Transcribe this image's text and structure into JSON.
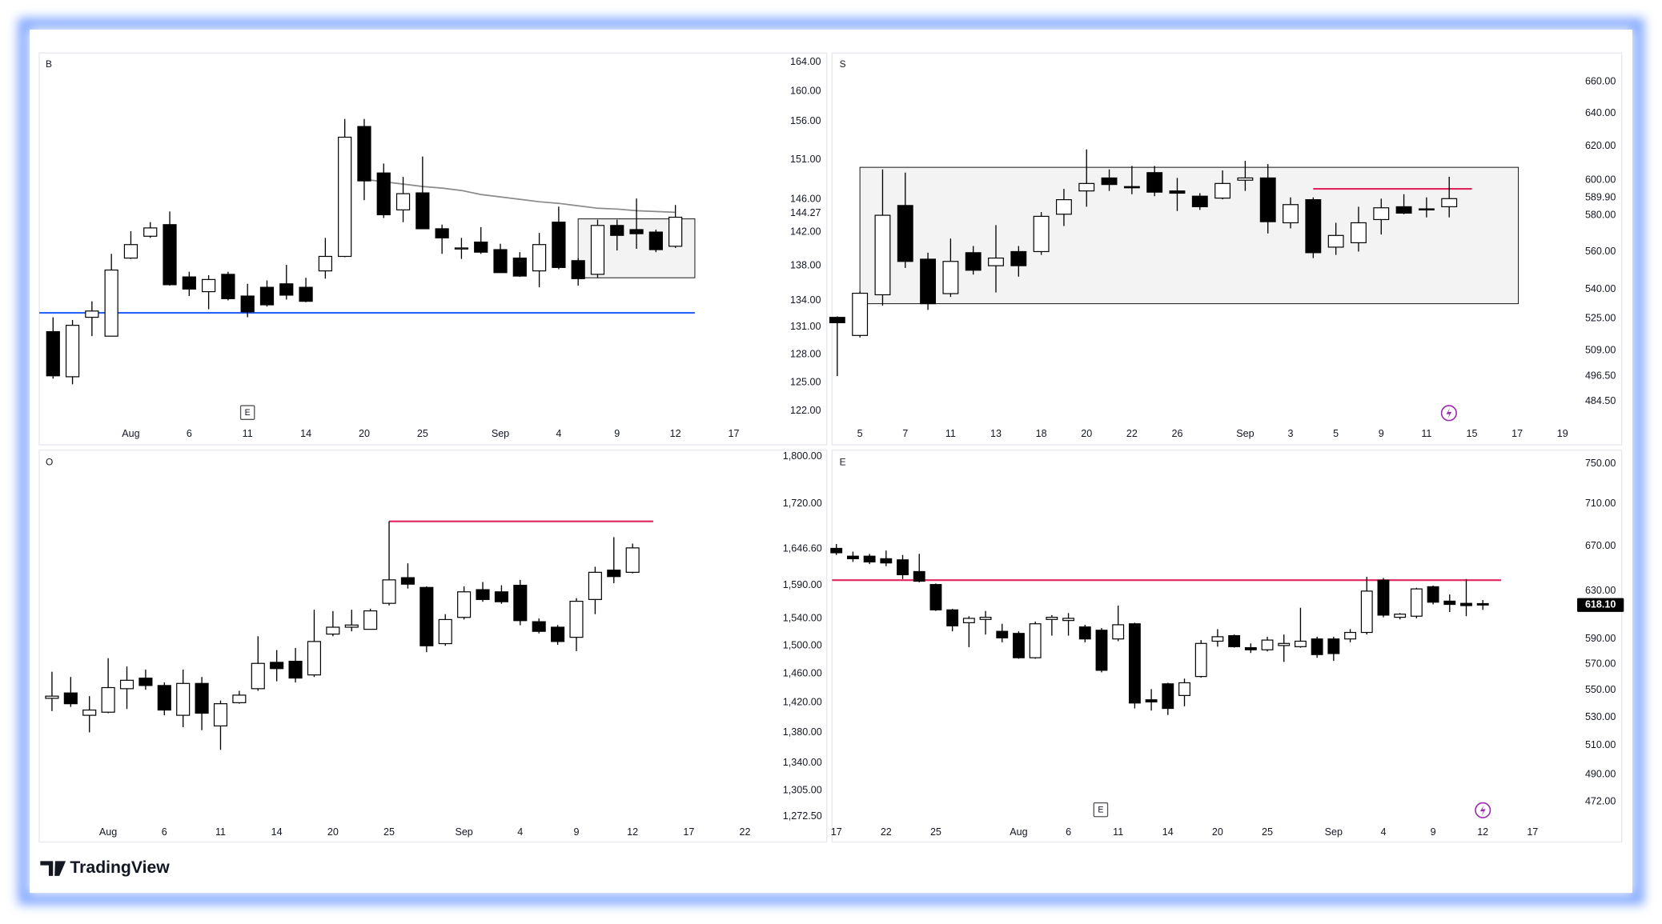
{
  "brand": "TradingView",
  "chart_data": [
    {
      "type": "candlestick",
      "title": "B",
      "log": true,
      "up_color": "#ffffff",
      "down_color": "#000000",
      "xlim": [
        -0.71,
        37.33
      ],
      "ylim": [
        120.7,
        165.3
      ],
      "yticks": [
        {
          "value": 164,
          "label": "164.00"
        },
        {
          "value": 160,
          "label": "160.00"
        },
        {
          "value": 156,
          "label": "156.00"
        },
        {
          "value": 151,
          "label": "151.00"
        },
        {
          "value": 146,
          "label": "146.00"
        },
        144.27,
        {
          "value": 142,
          "label": "142.00"
        },
        {
          "value": 138,
          "label": "138.00"
        },
        {
          "value": 134,
          "label": "134.00"
        },
        {
          "value": 131,
          "label": "131.00"
        },
        {
          "value": 128,
          "label": "128.00"
        },
        {
          "value": 125,
          "label": "125.00"
        },
        {
          "value": 122,
          "label": "122.00"
        }
      ],
      "xticks": [
        {
          "value": 4,
          "label": "Aug"
        },
        {
          "value": 7,
          "label": "6"
        },
        {
          "value": 10,
          "label": "11"
        },
        {
          "value": 13,
          "label": "14"
        },
        {
          "value": 16,
          "label": "20"
        },
        {
          "value": 19,
          "label": "25"
        },
        {
          "value": 23,
          "label": "Sep"
        },
        {
          "value": 26,
          "label": "4"
        },
        {
          "value": 29,
          "label": "9"
        },
        {
          "value": 32,
          "label": "12"
        },
        {
          "value": 35,
          "label": "17"
        }
      ],
      "open": [
        130.5,
        125.6,
        132.1,
        130.0,
        138.9,
        141.5,
        142.9,
        136.7,
        135.0,
        137.0,
        134.5,
        135.5,
        135.9,
        135.5,
        137.4,
        139.1,
        155.3,
        149.3,
        144.7,
        146.8,
        142.4,
        140.0,
        140.8,
        139.9,
        138.9,
        137.4,
        143.2,
        138.6,
        137.0,
        142.8,
        142.3,
        142.0,
        140.3
      ],
      "high": [
        132.1,
        131.8,
        133.9,
        139.4,
        142.1,
        143.2,
        144.5,
        137.3,
        136.9,
        137.3,
        135.9,
        136.3,
        138.1,
        136.6,
        141.3,
        156.3,
        156.3,
        150.5,
        148.8,
        151.4,
        142.9,
        141.3,
        142.6,
        140.6,
        139.6,
        141.9,
        145.1,
        138.9,
        143.5,
        143.5,
        146.1,
        142.3,
        145.3
      ],
      "low": [
        125.4,
        124.8,
        130.0,
        130.0,
        138.8,
        141.3,
        135.7,
        134.5,
        133.0,
        134.0,
        132.1,
        133.3,
        134.1,
        133.8,
        136.5,
        139.0,
        145.9,
        143.7,
        143.2,
        142.4,
        139.4,
        138.8,
        139.4,
        137.2,
        136.7,
        135.5,
        137.6,
        135.7,
        136.6,
        139.8,
        140.0,
        139.6,
        140.1
      ],
      "close": [
        125.7,
        131.2,
        132.8,
        137.5,
        140.5,
        142.5,
        135.8,
        135.3,
        136.4,
        134.2,
        132.7,
        133.5,
        134.6,
        133.9,
        139.1,
        153.9,
        148.3,
        144.1,
        146.7,
        142.4,
        141.3,
        140.1,
        139.6,
        137.2,
        136.8,
        140.5,
        137.8,
        136.5,
        142.8,
        141.6,
        141.8,
        139.9,
        143.8
      ],
      "ma": [
        null,
        null,
        null,
        null,
        null,
        null,
        null,
        null,
        null,
        null,
        null,
        null,
        null,
        null,
        null,
        null,
        148.5,
        148.2,
        147.9,
        147.6,
        147.4,
        147.1,
        146.6,
        146.3,
        146.0,
        145.7,
        145.5,
        145.2,
        144.9,
        144.8,
        144.6,
        144.5,
        144.4
      ],
      "ma_color": "#8a8a8a",
      "lines": [
        {
          "color": "#2962ff",
          "x": [
            -0.71,
            33
          ],
          "y": 132.6
        }
      ],
      "boxes": [
        {
          "x": [
            27,
            33
          ],
          "y": [
            136.6,
            143.6
          ]
        }
      ]
    },
    {
      "type": "candlestick",
      "title": "S",
      "log": true,
      "up_color": "#ffffff",
      "down_color": "#000000",
      "xlim": [
        -0.23,
        32.74
      ],
      "ylim": [
        474.2,
        678.5
      ],
      "yticks": [
        {
          "value": 660,
          "label": "660.00"
        },
        {
          "value": 640,
          "label": "640.00"
        },
        {
          "value": 620,
          "label": "620.00"
        },
        {
          "value": 600,
          "label": "600.00"
        },
        {
          "value": 589.9,
          "label": "589.90"
        },
        {
          "value": 580,
          "label": "580.00"
        },
        {
          "value": 560,
          "label": "560.00"
        },
        {
          "value": 540,
          "label": "540.00"
        },
        {
          "value": 525,
          "label": "525.00"
        },
        {
          "value": 509,
          "label": "509.00"
        },
        {
          "value": 496.5,
          "label": "496.50"
        },
        {
          "value": 484.5,
          "label": "484.50"
        }
      ],
      "xticks": [
        {
          "value": 1,
          "label": "5"
        },
        {
          "value": 3,
          "label": "7"
        },
        {
          "value": 5,
          "label": "11"
        },
        {
          "value": 7,
          "label": "13"
        },
        {
          "value": 9,
          "label": "18"
        },
        {
          "value": 11,
          "label": "20"
        },
        {
          "value": 13,
          "label": "22"
        },
        {
          "value": 15,
          "label": "26"
        },
        {
          "value": 18,
          "label": "Sep"
        },
        {
          "value": 20,
          "label": "3"
        },
        {
          "value": 22,
          "label": "5"
        },
        {
          "value": 24,
          "label": "9"
        },
        {
          "value": 26,
          "label": "11"
        },
        {
          "value": 28,
          "label": "15"
        },
        {
          "value": 30,
          "label": "17"
        },
        {
          "value": 32,
          "label": "19"
        }
      ],
      "open": [
        525.5,
        516.4,
        537.1,
        585.5,
        555.9,
        537.7,
        559.4,
        552.4,
        560.0,
        560.0,
        580.6,
        593.8,
        601.3,
        596.3,
        604.4,
        593.8,
        590.8,
        589.7,
        600.0,
        601.3,
        575.8,
        588.8,
        562.4,
        564.8,
        577.6,
        584.8,
        583.6,
        584.8
      ],
      "high": [
        526.0,
        538.9,
        606.3,
        604.4,
        559.4,
        567.1,
        563.0,
        574.5,
        563.0,
        581.8,
        595.0,
        618.1,
        606.3,
        608.3,
        608.3,
        601.3,
        592.5,
        605.7,
        611.3,
        609.4,
        590.1,
        590.1,
        575.8,
        584.8,
        589.4,
        591.9,
        590.1,
        602.0
      ],
      "low": [
        496.5,
        515.4,
        531.4,
        551.2,
        529.3,
        536.0,
        547.7,
        538.3,
        546.6,
        558.2,
        574.0,
        584.8,
        593.8,
        591.9,
        590.8,
        582.4,
        583.0,
        589.0,
        593.8,
        569.9,
        572.7,
        556.5,
        558.2,
        560.0,
        569.3,
        580.6,
        578.8,
        578.8
      ],
      "close": [
        522.8,
        537.9,
        580.0,
        554.7,
        532.5,
        554.7,
        550.0,
        556.5,
        552.4,
        579.4,
        588.8,
        598.1,
        597.5,
        595.6,
        593.1,
        592.5,
        584.8,
        598.1,
        601.3,
        576.4,
        586.0,
        559.4,
        568.8,
        575.8,
        584.2,
        581.2,
        583.3,
        589.4
      ],
      "lines": [
        {
          "color": "#e0245e",
          "x": [
            21,
            28
          ],
          "y": 595
        }
      ],
      "boxes": [
        {
          "x": [
            1,
            30.05
          ],
          "y": [
            532.5,
            607.5
          ]
        }
      ]
    },
    {
      "type": "candlestick",
      "title": "O",
      "log": true,
      "up_color": "#ffffff",
      "down_color": "#000000",
      "xlim": [
        -0.68,
        38.82
      ],
      "ylim": [
        1267.3,
        1811
      ],
      "yticks": [
        {
          "value": 1800,
          "label": "1,800.00"
        },
        {
          "value": 1720,
          "label": "1,720.00"
        },
        {
          "value": 1646.6,
          "label": "1,646.60"
        },
        {
          "value": 1590,
          "label": "1,590.00"
        },
        {
          "value": 1540,
          "label": "1,540.00"
        },
        {
          "value": 1500,
          "label": "1,500.00"
        },
        {
          "value": 1460,
          "label": "1,460.00"
        },
        {
          "value": 1420,
          "label": "1,420.00"
        },
        {
          "value": 1380,
          "label": "1,380.00"
        },
        {
          "value": 1340,
          "label": "1,340.00"
        },
        {
          "value": 1305,
          "label": "1,305.00"
        },
        {
          "value": 1272.5,
          "label": "1,272.50"
        }
      ],
      "xticks": [
        {
          "value": 3,
          "label": "Aug"
        },
        {
          "value": 6,
          "label": "6"
        },
        {
          "value": 9,
          "label": "11"
        },
        {
          "value": 12,
          "label": "14"
        },
        {
          "value": 15,
          "label": "20"
        },
        {
          "value": 18,
          "label": "25"
        },
        {
          "value": 22,
          "label": "Sep"
        },
        {
          "value": 25,
          "label": "4"
        },
        {
          "value": 28,
          "label": "9"
        },
        {
          "value": 31,
          "label": "12"
        },
        {
          "value": 34,
          "label": "17"
        },
        {
          "value": 37,
          "label": "22"
        }
      ],
      "open": [
        1426,
        1433.4,
        1402.9,
        1407.1,
        1439.3,
        1454,
        1443.7,
        1402.9,
        1446.6,
        1388.6,
        1420,
        1439.3,
        1476.3,
        1477.8,
        1458.5,
        1517,
        1527.1,
        1524,
        1562.6,
        1601.7,
        1586.7,
        1503.1,
        1541.6,
        1583.3,
        1580,
        1590,
        1535.2,
        1527.1,
        1512.3,
        1568.4,
        1613.4,
        1610
      ],
      "high": [
        1463,
        1455.6,
        1429,
        1482.2,
        1470.4,
        1466,
        1448,
        1466,
        1455.6,
        1423,
        1436.3,
        1513.9,
        1493.8,
        1496.9,
        1553,
        1551,
        1553,
        1554.6,
        1691,
        1624,
        1588.3,
        1546.4,
        1588.3,
        1595,
        1590,
        1598.3,
        1540,
        1530.3,
        1570.4,
        1618.6,
        1665.4,
        1655.1
      ],
      "low": [
        1408.6,
        1414.3,
        1380,
        1405.7,
        1411.4,
        1437.8,
        1402.9,
        1387,
        1382.9,
        1357,
        1418.6,
        1436.3,
        1449.6,
        1448,
        1455.6,
        1513.9,
        1521,
        1524,
        1559.4,
        1585,
        1490.8,
        1500,
        1538.4,
        1565,
        1561.9,
        1530,
        1518,
        1501.5,
        1492.3,
        1546.4,
        1593.3,
        1608.4
      ],
      "close": [
        1429,
        1418.6,
        1410,
        1440.8,
        1451,
        1443.7,
        1410,
        1446.6,
        1405.7,
        1418.6,
        1430.4,
        1474.8,
        1467.4,
        1454.1,
        1506.2,
        1527.1,
        1530.3,
        1551.3,
        1598.3,
        1591.7,
        1500,
        1538.4,
        1580,
        1568.4,
        1565,
        1536.8,
        1521,
        1506.2,
        1565.7,
        1610,
        1603.4,
        1648.3
      ],
      "lines": [
        {
          "color": "#e0245e",
          "x": [
            18,
            32.1
          ],
          "y": 1691
        }
      ]
    },
    {
      "type": "candlestick",
      "title": "E",
      "log": true,
      "up_color": "#ffffff",
      "down_color": "#000000",
      "xlim": [
        -0.26,
        44.82
      ],
      "ylim": [
        459.8,
        764.3
      ],
      "yticks": [
        {
          "value": 750,
          "label": "750.00"
        },
        {
          "value": 710,
          "label": "710.00"
        },
        {
          "value": 670,
          "label": "670.00"
        },
        {
          "value": 630,
          "label": "630.00"
        },
        {
          "value": 590,
          "label": "590.00"
        },
        {
          "value": 570,
          "label": "570.00"
        },
        {
          "value": 550,
          "label": "550.00"
        },
        {
          "value": 530,
          "label": "530.00"
        },
        {
          "value": 510,
          "label": "510.00"
        },
        {
          "value": 490,
          "label": "490.00"
        },
        {
          "value": 472,
          "label": "472.00"
        }
      ],
      "xticks": [
        {
          "value": 0,
          "label": "17"
        },
        {
          "value": 3,
          "label": "22"
        },
        {
          "value": 6,
          "label": "25"
        },
        {
          "value": 11,
          "label": "Aug"
        },
        {
          "value": 14,
          "label": "6"
        },
        {
          "value": 17,
          "label": "11"
        },
        {
          "value": 20,
          "label": "14"
        },
        {
          "value": 23,
          "label": "20"
        },
        {
          "value": 26,
          "label": "25"
        },
        {
          "value": 30,
          "label": "Sep"
        },
        {
          "value": 33,
          "label": "4"
        },
        {
          "value": 36,
          "label": "9"
        },
        {
          "value": 39,
          "label": "12"
        },
        {
          "value": 42,
          "label": "17"
        }
      ],
      "open": [
        668,
        660.9,
        660.9,
        658.6,
        657.6,
        647.1,
        635.7,
        614,
        603.3,
        606,
        596.2,
        594.5,
        575,
        606,
        605.1,
        599.8,
        597.1,
        590,
        602.4,
        542.8,
        554.8,
        546,
        560.4,
        588.2,
        592.7,
        583,
        581.3,
        584.7,
        583.8,
        590,
        590,
        590,
        595.3,
        639.5,
        607.8,
        608.7,
        633.8,
        621.4,
        619.5,
        619.3
      ],
      "high": [
        672,
        665,
        663,
        666,
        662,
        663,
        636.6,
        614.9,
        608.7,
        613.1,
        602.4,
        596.2,
        604.2,
        609.6,
        611.3,
        601.6,
        598.9,
        617.6,
        603.3,
        550.8,
        555.6,
        558.8,
        589.1,
        598,
        593.6,
        586.4,
        591.8,
        593.6,
        615.8,
        591.8,
        591.8,
        598,
        642.4,
        641.4,
        611.3,
        632.9,
        634.8,
        627.1,
        640.5,
        622.3
      ],
      "low": [
        662,
        655.7,
        653.8,
        651.9,
        640.5,
        637.6,
        613.1,
        596.2,
        583.3,
        593.6,
        587.3,
        574.2,
        574.2,
        592.7,
        592.7,
        587.3,
        563.6,
        588.2,
        536.4,
        534.8,
        531.6,
        538,
        559.6,
        583.8,
        583,
        578.8,
        580,
        571.7,
        583,
        575,
        572.5,
        587.3,
        593.6,
        607.8,
        606,
        606.9,
        618.6,
        612.2,
        608.7,
        614
      ],
      "close": [
        664,
        658.6,
        655.7,
        654.8,
        644.3,
        638.6,
        614,
        600.7,
        606.9,
        607.8,
        590.9,
        575,
        602.4,
        607.8,
        606.9,
        590,
        565.2,
        601.6,
        540.4,
        541.2,
        536.4,
        555.6,
        586.4,
        591.8,
        583.8,
        581.3,
        589.1,
        586.4,
        588.2,
        577.5,
        578.3,
        595.3,
        630,
        609.6,
        610.4,
        631.9,
        620.5,
        618.6,
        617.6,
        618.1
      ],
      "last_price": {
        "value": 618.1,
        "label": "618.10"
      },
      "lines": [
        {
          "color": "#e0245e",
          "x": [
            -0.26,
            40.1
          ],
          "y": 639.5
        }
      ]
    }
  ]
}
